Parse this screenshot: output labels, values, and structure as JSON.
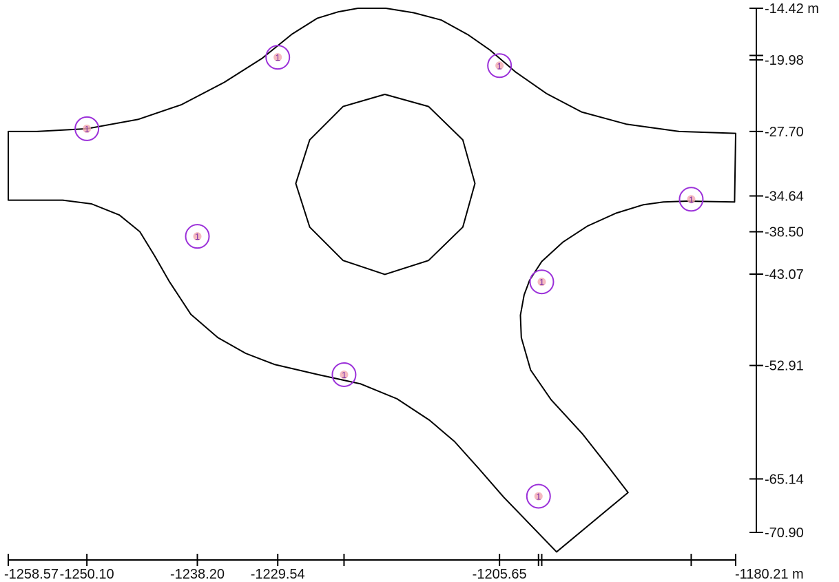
{
  "chart_data": {
    "type": "map-diagram",
    "x_axis": {
      "unit": "m",
      "ticks": [
        {
          "value": -1258.57,
          "label": "-1258.57"
        },
        {
          "value": -1250.1,
          "label": "-1250.10"
        },
        {
          "value": -1238.2,
          "label": "-1238.20"
        },
        {
          "value": -1229.54,
          "label": "-1229.54"
        },
        {
          "value": -1222.4,
          "label": ""
        },
        {
          "value": -1205.65,
          "label": "-1205.65"
        },
        {
          "value": -1201.45,
          "label": ""
        },
        {
          "value": -1201.1,
          "label": ""
        },
        {
          "value": -1185.0,
          "label": ""
        },
        {
          "value": -1180.21,
          "label": "-1180.21 m"
        }
      ]
    },
    "y_axis": {
      "unit": "m",
      "ticks": [
        {
          "value": -14.42,
          "label": "-14.42 m"
        },
        {
          "value": -19.5,
          "label": ""
        },
        {
          "value": -19.98,
          "label": "-19.98"
        },
        {
          "value": -27.7,
          "label": "-27.70"
        },
        {
          "value": -34.64,
          "label": "-34.64"
        },
        {
          "value": -38.5,
          "label": "-38.50"
        },
        {
          "value": -43.07,
          "label": "-43.07"
        },
        {
          "value": -52.91,
          "label": "-52.91"
        },
        {
          "value": -65.14,
          "label": "-65.14"
        },
        {
          "value": -70.9,
          "label": "-70.90"
        }
      ]
    },
    "outer_boundary": [
      [
        -1258.57,
        -27.7
      ],
      [
        -1255.5,
        -27.7
      ],
      [
        -1250.1,
        -27.4
      ],
      [
        -1244.6,
        -26.4
      ],
      [
        -1239.9,
        -24.8
      ],
      [
        -1235.3,
        -22.4
      ],
      [
        -1231.2,
        -19.8
      ],
      [
        -1228.0,
        -17.2
      ],
      [
        -1225.3,
        -15.5
      ],
      [
        -1223.0,
        -14.8
      ],
      [
        -1220.9,
        -14.42
      ],
      [
        -1217.9,
        -14.42
      ],
      [
        -1214.9,
        -14.9
      ],
      [
        -1211.9,
        -15.7
      ],
      [
        -1209.0,
        -17.3
      ],
      [
        -1206.7,
        -18.9
      ],
      [
        -1203.9,
        -21.3
      ],
      [
        -1200.6,
        -23.6
      ],
      [
        -1196.8,
        -25.6
      ],
      [
        -1192.0,
        -26.9
      ],
      [
        -1186.3,
        -27.7
      ],
      [
        -1180.21,
        -27.9
      ],
      [
        -1180.33,
        -35.3
      ],
      [
        -1185.4,
        -35.2
      ],
      [
        -1188.0,
        -35.3
      ],
      [
        -1190.2,
        -35.6
      ],
      [
        -1193.1,
        -36.5
      ],
      [
        -1196.2,
        -37.9
      ],
      [
        -1198.8,
        -39.6
      ],
      [
        -1201.1,
        -41.7
      ],
      [
        -1202.4,
        -43.7
      ],
      [
        -1203.0,
        -45.3
      ],
      [
        -1203.4,
        -47.5
      ],
      [
        -1203.3,
        -49.9
      ],
      [
        -1202.3,
        -53.4
      ],
      [
        -1200.1,
        -56.6
      ],
      [
        -1196.7,
        -60.3
      ],
      [
        -1193.8,
        -64.0
      ],
      [
        -1191.8,
        -66.6
      ],
      [
        -1199.5,
        -73.0
      ],
      [
        -1205.2,
        -67.1
      ],
      [
        -1207.9,
        -64.0
      ],
      [
        -1210.5,
        -61.1
      ],
      [
        -1213.2,
        -58.8
      ],
      [
        -1216.7,
        -56.5
      ],
      [
        -1220.6,
        -54.9
      ],
      [
        -1225.2,
        -53.9
      ],
      [
        -1229.9,
        -52.8
      ],
      [
        -1233.0,
        -51.6
      ],
      [
        -1236.0,
        -49.9
      ],
      [
        -1238.9,
        -47.4
      ],
      [
        -1241.2,
        -43.9
      ],
      [
        -1242.8,
        -41.1
      ],
      [
        -1244.4,
        -38.5
      ],
      [
        -1246.6,
        -36.7
      ],
      [
        -1249.6,
        -35.5
      ],
      [
        -1252.7,
        -35.1
      ],
      [
        -1258.57,
        -35.1
      ]
    ],
    "central_island": [
      [
        -1218.0,
        -23.7
      ],
      [
        -1222.5,
        -25.0
      ],
      [
        -1226.1,
        -28.6
      ],
      [
        -1227.6,
        -33.3
      ],
      [
        -1226.1,
        -38.0
      ],
      [
        -1222.5,
        -41.6
      ],
      [
        -1218.0,
        -43.1
      ],
      [
        -1213.3,
        -41.6
      ],
      [
        -1209.6,
        -38.0
      ],
      [
        -1208.3,
        -33.3
      ],
      [
        -1209.6,
        -28.6
      ],
      [
        -1213.3,
        -25.0
      ]
    ],
    "markers": [
      {
        "label": "1",
        "x": -1250.1,
        "y": -27.4
      },
      {
        "label": "1",
        "x": -1229.54,
        "y": -19.7
      },
      {
        "label": "1",
        "x": -1205.65,
        "y": -20.6
      },
      {
        "label": "1",
        "x": -1185.0,
        "y": -35.0
      },
      {
        "label": "1",
        "x": -1201.1,
        "y": -43.9
      },
      {
        "label": "1",
        "x": -1238.2,
        "y": -39.0
      },
      {
        "label": "1",
        "x": -1222.4,
        "y": -53.9
      },
      {
        "label": "1",
        "x": -1201.45,
        "y": -67.0
      }
    ],
    "xlim": [
      -1258.57,
      -1180.21
    ],
    "ylim": [
      -70.9,
      -14.42
    ],
    "colors": {
      "road": "#000000",
      "marker_ring": "#9b30d9",
      "marker_dot": "#f3a9b0",
      "marker_text": "#7a2fa8"
    }
  }
}
